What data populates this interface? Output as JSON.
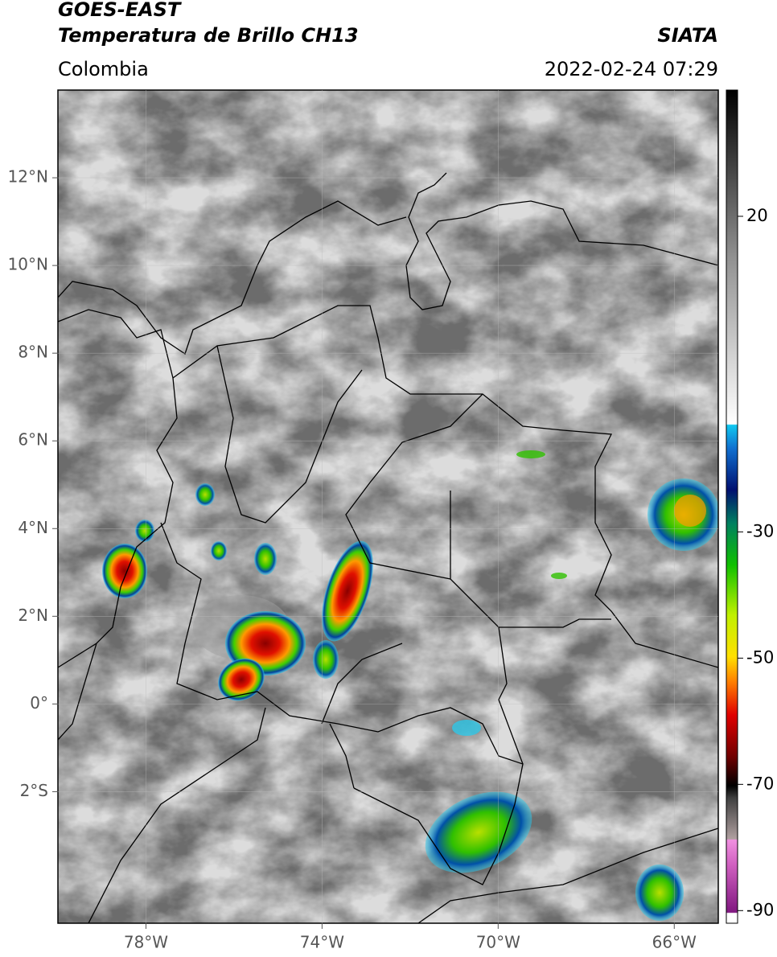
{
  "header": {
    "title": "GOES-EAST",
    "subtitle": "Temperatura de Brillo CH13",
    "region": "Colombia",
    "source": "SIATA",
    "datetime": "2022-02-24 07:29"
  },
  "map": {
    "xlim": [
      -80,
      -65
    ],
    "ylim": [
      -5,
      14
    ],
    "xticks": [
      {
        "value": -78,
        "label": "78°W"
      },
      {
        "value": -74,
        "label": "74°W"
      },
      {
        "value": -70,
        "label": "70°W"
      },
      {
        "value": -66,
        "label": "66°W"
      }
    ],
    "yticks": [
      {
        "value": 12,
        "label": "12°N"
      },
      {
        "value": 10,
        "label": "10°N"
      },
      {
        "value": 8,
        "label": "8°N"
      },
      {
        "value": 6,
        "label": "6°N"
      },
      {
        "value": 4,
        "label": "4°N"
      },
      {
        "value": 2,
        "label": "2°N"
      },
      {
        "value": 0,
        "label": "0°"
      },
      {
        "value": -2,
        "label": "2°S"
      }
    ],
    "grid": true
  },
  "colorbar": {
    "clim": [
      -92,
      40
    ],
    "ticks": [
      20,
      -30,
      -50,
      -70,
      -90
    ]
  }
}
